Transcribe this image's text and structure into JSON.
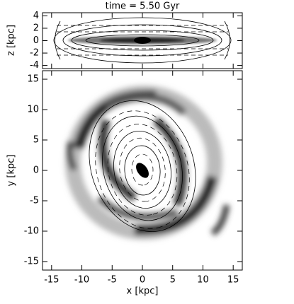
{
  "chart_data": [
    {
      "type": "image",
      "title": "time =  5.50 Gyr",
      "ylabel": "z [kpc]",
      "xlim": [
        -16.5,
        16.5
      ],
      "ylim": [
        -4.5,
        4.5
      ],
      "yticks": [
        -4,
        -2,
        0,
        2,
        4
      ]
    },
    {
      "type": "image",
      "xlabel": "x [kpc]",
      "ylabel": "y [kpc]",
      "xlim": [
        -16.5,
        16.5
      ],
      "ylim": [
        -16.4,
        16.4
      ],
      "xticks": [
        -15,
        -10,
        -5,
        0,
        5,
        10,
        15
      ],
      "yticks": [
        -15,
        -10,
        -5,
        0,
        5,
        10,
        15
      ]
    }
  ]
}
